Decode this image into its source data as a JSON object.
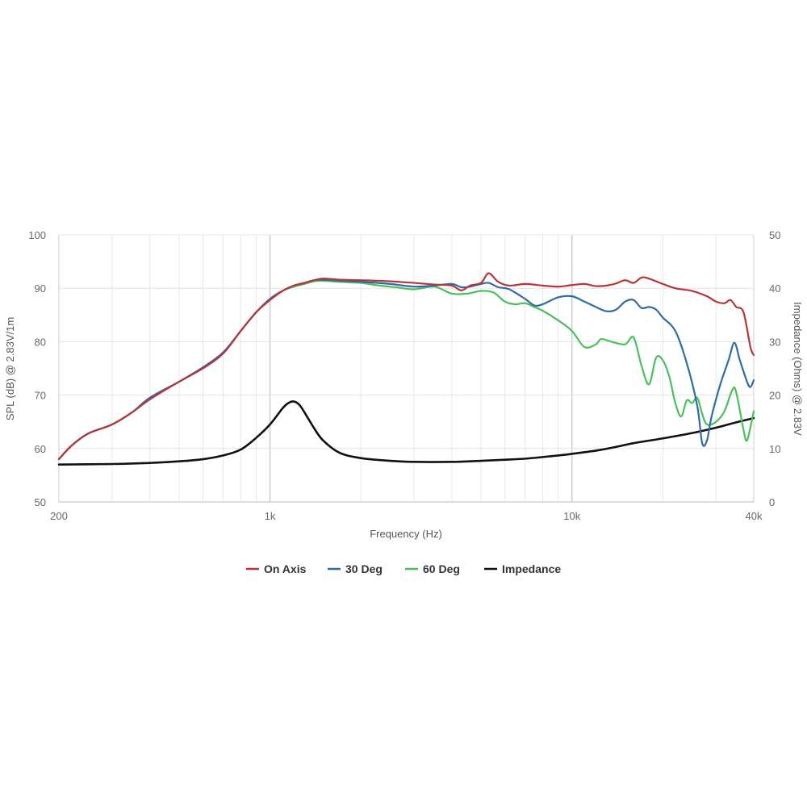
{
  "chart_data": {
    "type": "line",
    "title": "",
    "xlabel": "Frequency (Hz)",
    "ylabel": "SPL (dB) @ 2.83V/1m",
    "y2label": "Impedance (Ohms) @ 2.83V",
    "x_scale": "log",
    "xlim": [
      200,
      40000
    ],
    "ylim": [
      50,
      100
    ],
    "y2lim": [
      0,
      50
    ],
    "grid": true,
    "legend_position": "bottom-center",
    "x_ticks": [
      {
        "value": 200,
        "label": "200"
      },
      {
        "value": 1000,
        "label": "1k"
      },
      {
        "value": 10000,
        "label": "10k"
      },
      {
        "value": 40000,
        "label": "40k"
      }
    ],
    "y_ticks": [
      "100",
      "90",
      "80",
      "70",
      "60",
      "50"
    ],
    "y2_ticks": [
      "50",
      "40",
      "30",
      "20",
      "10",
      "0"
    ],
    "series": [
      {
        "name": "On Axis",
        "color": "#b5353a",
        "axis": "left",
        "points": [
          [
            200,
            58.0
          ],
          [
            220,
            60.5
          ],
          [
            250,
            62.8
          ],
          [
            300,
            64.5
          ],
          [
            350,
            66.8
          ],
          [
            400,
            69.2
          ],
          [
            500,
            72.5
          ],
          [
            600,
            75.0
          ],
          [
            700,
            77.8
          ],
          [
            800,
            82.0
          ],
          [
            900,
            85.5
          ],
          [
            1000,
            87.8
          ],
          [
            1100,
            89.5
          ],
          [
            1200,
            90.5
          ],
          [
            1300,
            91.0
          ],
          [
            1400,
            91.5
          ],
          [
            1500,
            91.8
          ],
          [
            1700,
            91.6
          ],
          [
            2000,
            91.5
          ],
          [
            2500,
            91.3
          ],
          [
            3000,
            91.0
          ],
          [
            3500,
            90.7
          ],
          [
            4000,
            90.5
          ],
          [
            4300,
            89.6
          ],
          [
            4600,
            90.5
          ],
          [
            5000,
            91.0
          ],
          [
            5300,
            92.8
          ],
          [
            5700,
            91.2
          ],
          [
            6200,
            90.5
          ],
          [
            7000,
            90.8
          ],
          [
            8000,
            90.5
          ],
          [
            9000,
            90.3
          ],
          [
            10000,
            90.6
          ],
          [
            11000,
            90.8
          ],
          [
            12000,
            90.4
          ],
          [
            13000,
            90.5
          ],
          [
            14000,
            90.9
          ],
          [
            15000,
            91.5
          ],
          [
            16000,
            91.0
          ],
          [
            17000,
            92.0
          ],
          [
            18000,
            91.8
          ],
          [
            20000,
            90.8
          ],
          [
            22000,
            90.0
          ],
          [
            25000,
            89.5
          ],
          [
            28000,
            88.5
          ],
          [
            30000,
            87.5
          ],
          [
            32000,
            87.2
          ],
          [
            33500,
            87.8
          ],
          [
            35000,
            86.5
          ],
          [
            37000,
            85.5
          ],
          [
            39000,
            79.0
          ],
          [
            40000,
            77.5
          ]
        ]
      },
      {
        "name": "30 Deg",
        "color": "#2f6ba8",
        "axis": "left",
        "points": [
          [
            200,
            58.0
          ],
          [
            220,
            60.5
          ],
          [
            250,
            62.8
          ],
          [
            300,
            64.5
          ],
          [
            350,
            66.8
          ],
          [
            400,
            69.5
          ],
          [
            500,
            72.5
          ],
          [
            600,
            75.2
          ],
          [
            700,
            78.0
          ],
          [
            800,
            82.0
          ],
          [
            900,
            85.5
          ],
          [
            1000,
            88.0
          ],
          [
            1100,
            89.5
          ],
          [
            1200,
            90.5
          ],
          [
            1300,
            91.0
          ],
          [
            1400,
            91.5
          ],
          [
            1500,
            91.6
          ],
          [
            1700,
            91.4
          ],
          [
            2000,
            91.2
          ],
          [
            2500,
            90.8
          ],
          [
            3000,
            90.3
          ],
          [
            3500,
            90.5
          ],
          [
            4000,
            90.8
          ],
          [
            4300,
            90.2
          ],
          [
            4600,
            90.3
          ],
          [
            5000,
            90.8
          ],
          [
            5300,
            91.0
          ],
          [
            5700,
            90.2
          ],
          [
            6200,
            89.8
          ],
          [
            7000,
            88.0
          ],
          [
            7500,
            86.8
          ],
          [
            8000,
            87.0
          ],
          [
            9000,
            88.3
          ],
          [
            10000,
            88.5
          ],
          [
            11000,
            87.5
          ],
          [
            12000,
            86.5
          ],
          [
            13000,
            85.7
          ],
          [
            14000,
            86.0
          ],
          [
            15000,
            87.5
          ],
          [
            16000,
            87.8
          ],
          [
            17000,
            86.3
          ],
          [
            18000,
            86.5
          ],
          [
            19000,
            86.0
          ],
          [
            20000,
            84.5
          ],
          [
            22000,
            82.0
          ],
          [
            24000,
            76.0
          ],
          [
            26000,
            68.0
          ],
          [
            27000,
            61.0
          ],
          [
            28000,
            61.5
          ],
          [
            29000,
            66.0
          ],
          [
            31000,
            72.0
          ],
          [
            33000,
            76.5
          ],
          [
            34500,
            79.8
          ],
          [
            36000,
            76.5
          ],
          [
            38000,
            72.5
          ],
          [
            39000,
            71.5
          ],
          [
            40000,
            72.8
          ]
        ]
      },
      {
        "name": "60 Deg",
        "color": "#4cbf5c",
        "axis": "left",
        "points": [
          [
            200,
            58.0
          ],
          [
            220,
            60.5
          ],
          [
            250,
            62.8
          ],
          [
            300,
            64.5
          ],
          [
            350,
            66.8
          ],
          [
            400,
            69.5
          ],
          [
            500,
            72.5
          ],
          [
            600,
            75.2
          ],
          [
            700,
            78.0
          ],
          [
            800,
            82.0
          ],
          [
            900,
            85.5
          ],
          [
            1000,
            88.0
          ],
          [
            1100,
            89.5
          ],
          [
            1200,
            90.3
          ],
          [
            1300,
            90.8
          ],
          [
            1400,
            91.3
          ],
          [
            1500,
            91.4
          ],
          [
            1700,
            91.2
          ],
          [
            2000,
            91.0
          ],
          [
            2300,
            90.5
          ],
          [
            2600,
            90.2
          ],
          [
            3000,
            89.8
          ],
          [
            3500,
            90.3
          ],
          [
            4000,
            89.0
          ],
          [
            4500,
            89.0
          ],
          [
            5000,
            89.5
          ],
          [
            5500,
            89.2
          ],
          [
            6000,
            87.5
          ],
          [
            6500,
            87.0
          ],
          [
            7000,
            87.2
          ],
          [
            7500,
            86.5
          ],
          [
            8000,
            85.8
          ],
          [
            9000,
            84.0
          ],
          [
            10000,
            82.0
          ],
          [
            11000,
            79.0
          ],
          [
            12000,
            79.5
          ],
          [
            12500,
            80.5
          ],
          [
            13500,
            80.0
          ],
          [
            15000,
            79.5
          ],
          [
            16000,
            80.8
          ],
          [
            17000,
            75.5
          ],
          [
            18000,
            72.0
          ],
          [
            19000,
            77.0
          ],
          [
            20000,
            76.5
          ],
          [
            21000,
            73.5
          ],
          [
            22000,
            68.5
          ],
          [
            23000,
            66.0
          ],
          [
            24000,
            69.0
          ],
          [
            25000,
            68.5
          ],
          [
            26000,
            69.5
          ],
          [
            27000,
            66.5
          ],
          [
            28000,
            64.5
          ],
          [
            30000,
            65.0
          ],
          [
            32000,
            67.0
          ],
          [
            34000,
            71.0
          ],
          [
            35000,
            70.5
          ],
          [
            37000,
            63.5
          ],
          [
            38000,
            61.5
          ],
          [
            39500,
            65.5
          ],
          [
            40000,
            67.0
          ]
        ]
      },
      {
        "name": "Impedance",
        "color": "#111111",
        "axis": "right",
        "points": [
          [
            200,
            7.0
          ],
          [
            300,
            7.1
          ],
          [
            400,
            7.3
          ],
          [
            500,
            7.6
          ],
          [
            600,
            8.0
          ],
          [
            700,
            8.7
          ],
          [
            800,
            9.8
          ],
          [
            900,
            12.0
          ],
          [
            1000,
            14.5
          ],
          [
            1100,
            17.5
          ],
          [
            1150,
            18.5
          ],
          [
            1200,
            18.8
          ],
          [
            1250,
            18.2
          ],
          [
            1300,
            16.8
          ],
          [
            1400,
            13.8
          ],
          [
            1500,
            11.5
          ],
          [
            1700,
            9.2
          ],
          [
            2000,
            8.2
          ],
          [
            2500,
            7.7
          ],
          [
            3000,
            7.5
          ],
          [
            4000,
            7.5
          ],
          [
            5000,
            7.7
          ],
          [
            6000,
            7.9
          ],
          [
            7000,
            8.1
          ],
          [
            8000,
            8.4
          ],
          [
            9000,
            8.7
          ],
          [
            10000,
            9.0
          ],
          [
            12000,
            9.6
          ],
          [
            14000,
            10.3
          ],
          [
            16000,
            11.0
          ],
          [
            20000,
            11.9
          ],
          [
            25000,
            12.9
          ],
          [
            30000,
            13.9
          ],
          [
            35000,
            14.9
          ],
          [
            40000,
            15.7
          ]
        ]
      }
    ]
  }
}
